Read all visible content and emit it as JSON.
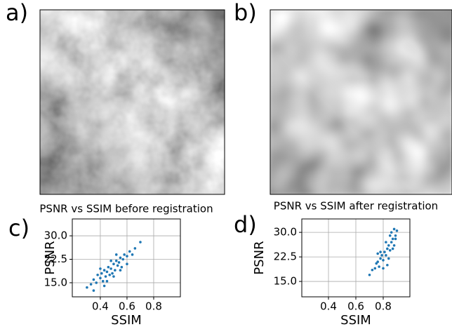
{
  "images": [
    {
      "label": "a)"
    },
    {
      "label": "b)"
    }
  ],
  "chart_data": [
    {
      "type": "scatter",
      "panel_label": "c)",
      "title": "PSNR vs SSIM before registration",
      "x_label": "SSIM",
      "y_label": "PSNR",
      "color": "#1f77b4",
      "grid": true,
      "xlim": [
        0.19,
        1.0
      ],
      "ylim": [
        10.5,
        35.4
      ],
      "xticks": [
        0.4,
        0.6,
        0.8
      ],
      "yticks": [
        {
          "value": 15,
          "label": "15.0"
        },
        {
          "value": 22.5,
          "label": "22.5"
        },
        {
          "value": 30,
          "label": "30.0"
        }
      ],
      "x": [
        0.3,
        0.33,
        0.35,
        0.37,
        0.38,
        0.4,
        0.41,
        0.42,
        0.43,
        0.44,
        0.45,
        0.46,
        0.47,
        0.48,
        0.49,
        0.5,
        0.51,
        0.52,
        0.53,
        0.54,
        0.55,
        0.56,
        0.57,
        0.58,
        0.6,
        0.62,
        0.64,
        0.66,
        0.7,
        0.45,
        0.5,
        0.4,
        0.55,
        0.35,
        0.6,
        0.48,
        0.52,
        0.43
      ],
      "values": [
        13.5,
        14.5,
        16,
        15,
        17.5,
        16.5,
        18,
        15.5,
        19,
        17,
        18.5,
        20,
        17.5,
        19.5,
        18,
        21,
        19,
        22,
        20.5,
        21.5,
        23,
        20,
        22.5,
        24,
        23.5,
        25,
        24,
        26,
        28,
        15.5,
        17,
        19.5,
        19,
        12.5,
        21,
        22,
        24,
        14
      ]
    },
    {
      "type": "scatter",
      "panel_label": "d)",
      "title": "PSNR vs SSIM after registration",
      "x_label": "SSIM",
      "y_label": "PSNR",
      "color": "#1f77b4",
      "grid": true,
      "xlim": [
        0.205,
        0.995
      ],
      "ylim": [
        10.3,
        34.1
      ],
      "xticks": [
        0.4,
        0.6,
        0.8
      ],
      "yticks": [
        {
          "value": 15,
          "label": "15.0"
        },
        {
          "value": 22.5,
          "label": "22.5"
        },
        {
          "value": 30,
          "label": "30.0"
        }
      ],
      "x": [
        0.7,
        0.72,
        0.74,
        0.75,
        0.76,
        0.77,
        0.78,
        0.79,
        0.8,
        0.81,
        0.82,
        0.83,
        0.84,
        0.85,
        0.86,
        0.87,
        0.88,
        0.89,
        0.9,
        0.78,
        0.82,
        0.85,
        0.88,
        0.8,
        0.84,
        0.87,
        0.76,
        0.86,
        0.89,
        0.83
      ],
      "values": [
        17,
        18.5,
        19,
        20.5,
        21,
        19.5,
        22,
        23,
        21.5,
        24,
        23,
        25,
        26,
        24.5,
        27,
        28,
        26,
        29,
        30.5,
        24,
        27,
        29,
        31,
        19,
        22,
        25,
        23.5,
        30,
        28,
        20
      ]
    }
  ]
}
